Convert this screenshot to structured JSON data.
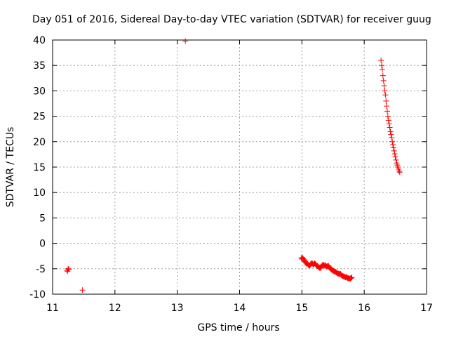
{
  "chart_data": {
    "type": "scatter",
    "title": "Day 051 of 2016, Sidereal Day-to-day VTEC variation (SDTVAR) for receiver guug",
    "xlabel": "GPS time / hours",
    "ylabel": "SDTVAR / TECUs",
    "xlim": [
      11,
      17
    ],
    "ylim": [
      -10,
      40
    ],
    "xticks": [
      11,
      12,
      13,
      14,
      15,
      16,
      17
    ],
    "yticks": [
      -10,
      -5,
      0,
      5,
      10,
      15,
      20,
      25,
      30,
      35,
      40
    ],
    "grid": true,
    "marker": "+",
    "color": "#ff0000",
    "series": [
      {
        "name": "SDTVAR",
        "points": [
          [
            11.23,
            -5.3
          ],
          [
            11.25,
            -5.0
          ],
          [
            11.24,
            -5.5
          ],
          [
            11.26,
            -5.1
          ],
          [
            11.48,
            -9.2
          ],
          [
            13.13,
            39.8
          ],
          [
            14.99,
            -2.9
          ],
          [
            15.0,
            -3.1
          ],
          [
            15.01,
            -2.8
          ],
          [
            15.02,
            -3.0
          ],
          [
            15.03,
            -3.2
          ],
          [
            15.04,
            -3.3
          ],
          [
            15.05,
            -3.6
          ],
          [
            15.06,
            -3.8
          ],
          [
            15.07,
            -3.9
          ],
          [
            15.08,
            -4.1
          ],
          [
            15.09,
            -4.0
          ],
          [
            15.1,
            -4.2
          ],
          [
            15.11,
            -4.3
          ],
          [
            15.12,
            -4.4
          ],
          [
            15.13,
            -4.3
          ],
          [
            15.14,
            -4.1
          ],
          [
            15.15,
            -4.0
          ],
          [
            15.16,
            -3.9
          ],
          [
            15.17,
            -4.0
          ],
          [
            15.18,
            -4.2
          ],
          [
            15.19,
            -4.1
          ],
          [
            15.2,
            -3.9
          ],
          [
            15.21,
            -4.0
          ],
          [
            15.22,
            -4.1
          ],
          [
            15.23,
            -4.3
          ],
          [
            15.24,
            -4.4
          ],
          [
            15.25,
            -4.5
          ],
          [
            15.26,
            -4.6
          ],
          [
            15.27,
            -4.7
          ],
          [
            15.28,
            -4.8
          ],
          [
            15.29,
            -4.9
          ],
          [
            15.3,
            -4.8
          ],
          [
            15.31,
            -4.6
          ],
          [
            15.32,
            -4.4
          ],
          [
            15.33,
            -4.3
          ],
          [
            15.34,
            -4.2
          ],
          [
            15.35,
            -4.3
          ],
          [
            15.36,
            -4.4
          ],
          [
            15.37,
            -4.3
          ],
          [
            15.38,
            -4.4
          ],
          [
            15.39,
            -4.5
          ],
          [
            15.4,
            -4.6
          ],
          [
            15.41,
            -4.5
          ],
          [
            15.42,
            -4.4
          ],
          [
            15.43,
            -4.5
          ],
          [
            15.44,
            -4.7
          ],
          [
            15.45,
            -4.9
          ],
          [
            15.46,
            -5.0
          ],
          [
            15.47,
            -5.1
          ],
          [
            15.48,
            -5.2
          ],
          [
            15.49,
            -5.3
          ],
          [
            15.5,
            -5.4
          ],
          [
            15.51,
            -5.4
          ],
          [
            15.52,
            -5.5
          ],
          [
            15.53,
            -5.6
          ],
          [
            15.54,
            -5.6
          ],
          [
            15.55,
            -5.7
          ],
          [
            15.56,
            -5.8
          ],
          [
            15.57,
            -5.9
          ],
          [
            15.58,
            -5.9
          ],
          [
            15.59,
            -6.0
          ],
          [
            15.6,
            -6.0
          ],
          [
            15.61,
            -6.1
          ],
          [
            15.62,
            -6.0
          ],
          [
            15.63,
            -6.2
          ],
          [
            15.64,
            -6.3
          ],
          [
            15.65,
            -6.4
          ],
          [
            15.66,
            -6.5
          ],
          [
            15.67,
            -6.5
          ],
          [
            15.68,
            -6.6
          ],
          [
            15.69,
            -6.6
          ],
          [
            15.7,
            -6.7
          ],
          [
            15.71,
            -6.6
          ],
          [
            15.72,
            -6.7
          ],
          [
            15.73,
            -6.8
          ],
          [
            15.74,
            -6.9
          ],
          [
            15.75,
            -6.8
          ],
          [
            15.76,
            -6.9
          ],
          [
            15.77,
            -7.0
          ],
          [
            15.78,
            -6.9
          ],
          [
            15.79,
            -6.8
          ],
          [
            15.8,
            -6.7
          ],
          [
            16.27,
            36.0
          ],
          [
            16.28,
            35.0
          ],
          [
            16.29,
            34.2
          ],
          [
            16.3,
            33.0
          ],
          [
            16.31,
            32.0
          ],
          [
            16.32,
            31.0
          ],
          [
            16.33,
            30.0
          ],
          [
            16.34,
            29.2
          ],
          [
            16.35,
            28.0
          ],
          [
            16.36,
            27.0
          ],
          [
            16.37,
            26.0
          ],
          [
            16.38,
            25.0
          ],
          [
            16.39,
            24.2
          ],
          [
            16.4,
            23.5
          ],
          [
            16.41,
            22.8
          ],
          [
            16.42,
            22.0
          ],
          [
            16.43,
            21.4
          ],
          [
            16.44,
            20.8
          ],
          [
            16.45,
            20.0
          ],
          [
            16.46,
            19.4
          ],
          [
            16.47,
            18.8
          ],
          [
            16.48,
            18.2
          ],
          [
            16.49,
            17.6
          ],
          [
            16.5,
            17.0
          ],
          [
            16.51,
            16.4
          ],
          [
            16.52,
            15.8
          ],
          [
            16.53,
            15.4
          ],
          [
            16.54,
            15.0
          ],
          [
            16.55,
            14.6
          ],
          [
            16.56,
            14.2
          ],
          [
            16.57,
            14.0
          ]
        ]
      }
    ]
  }
}
